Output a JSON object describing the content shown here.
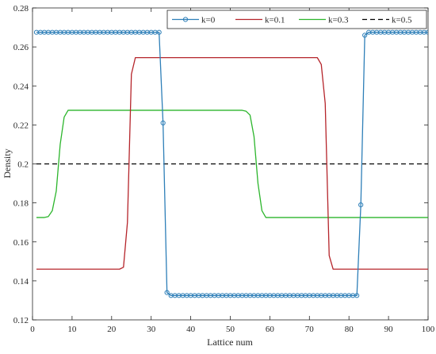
{
  "chart_data": {
    "type": "line",
    "title": "",
    "xlabel": "Lattice num",
    "ylabel": "Density",
    "xlim": [
      0,
      100
    ],
    "ylim": [
      0.12,
      0.28
    ],
    "xticks": [
      0,
      10,
      20,
      30,
      40,
      50,
      60,
      70,
      80,
      90,
      100
    ],
    "yticks": [
      0.12,
      0.14,
      0.16,
      0.18,
      0.2,
      0.22,
      0.24,
      0.26,
      0.28
    ],
    "ytick_labels": [
      "0.12",
      "0.14",
      "0.16",
      "0.18",
      "0.2",
      "0.22",
      "0.24",
      "0.26",
      "0.28"
    ],
    "grid": false,
    "legend_position": "top-right",
    "series": [
      {
        "name": "k=0",
        "color": "#2e7fb8",
        "line_style": "solid",
        "marker": "circle",
        "x": [
          1,
          2,
          3,
          4,
          5,
          6,
          7,
          8,
          9,
          10,
          11,
          12,
          13,
          14,
          15,
          16,
          17,
          18,
          19,
          20,
          21,
          22,
          23,
          24,
          25,
          26,
          27,
          28,
          29,
          30,
          31,
          32,
          33,
          34,
          35,
          36,
          37,
          38,
          39,
          40,
          41,
          42,
          43,
          44,
          45,
          46,
          47,
          48,
          49,
          50,
          51,
          52,
          53,
          54,
          55,
          56,
          57,
          58,
          59,
          60,
          61,
          62,
          63,
          64,
          65,
          66,
          67,
          68,
          69,
          70,
          71,
          72,
          73,
          74,
          75,
          76,
          77,
          78,
          79,
          80,
          81,
          82,
          83,
          84,
          85,
          86,
          87,
          88,
          89,
          90,
          91,
          92,
          93,
          94,
          95,
          96,
          97,
          98,
          99,
          100
        ],
        "y": [
          0.2675,
          0.2675,
          0.2675,
          0.2675,
          0.2675,
          0.2675,
          0.2675,
          0.2675,
          0.2675,
          0.2675,
          0.2675,
          0.2675,
          0.2675,
          0.2675,
          0.2675,
          0.2675,
          0.2675,
          0.2675,
          0.2675,
          0.2675,
          0.2675,
          0.2675,
          0.2675,
          0.2675,
          0.2675,
          0.2675,
          0.2675,
          0.2675,
          0.2675,
          0.2675,
          0.2675,
          0.2675,
          0.221,
          0.134,
          0.1325,
          0.1325,
          0.1325,
          0.1325,
          0.1325,
          0.1325,
          0.1325,
          0.1325,
          0.1325,
          0.1325,
          0.1325,
          0.1325,
          0.1325,
          0.1325,
          0.1325,
          0.1325,
          0.1325,
          0.1325,
          0.1325,
          0.1325,
          0.1325,
          0.1325,
          0.1325,
          0.1325,
          0.1325,
          0.1325,
          0.1325,
          0.1325,
          0.1325,
          0.1325,
          0.1325,
          0.1325,
          0.1325,
          0.1325,
          0.1325,
          0.1325,
          0.1325,
          0.1325,
          0.1325,
          0.1325,
          0.1325,
          0.1325,
          0.1325,
          0.1325,
          0.1325,
          0.1325,
          0.1325,
          0.1325,
          0.179,
          0.266,
          0.2675,
          0.2675,
          0.2675,
          0.2675,
          0.2675,
          0.2675,
          0.2675,
          0.2675,
          0.2675,
          0.2675,
          0.2675,
          0.2675,
          0.2675,
          0.2675,
          0.2675,
          0.2675
        ]
      },
      {
        "name": "k=0.1",
        "color": "#b5242a",
        "line_style": "solid",
        "marker": "none",
        "x": [
          1,
          22,
          23,
          24,
          25,
          26,
          27,
          72,
          73,
          74,
          75,
          76,
          77,
          100
        ],
        "y": [
          0.146,
          0.146,
          0.147,
          0.17,
          0.246,
          0.2545,
          0.2545,
          0.2545,
          0.251,
          0.231,
          0.153,
          0.146,
          0.146,
          0.146
        ]
      },
      {
        "name": "k=0.3",
        "color": "#2bb52b",
        "line_style": "solid",
        "marker": "none",
        "x": [
          1,
          3,
          4,
          5,
          6,
          7,
          8,
          9,
          10,
          53,
          54,
          55,
          56,
          57,
          58,
          59,
          60,
          100
        ],
        "y": [
          0.1725,
          0.1725,
          0.173,
          0.176,
          0.186,
          0.21,
          0.224,
          0.2275,
          0.2275,
          0.2275,
          0.227,
          0.225,
          0.214,
          0.19,
          0.176,
          0.1725,
          0.1725,
          0.1725
        ]
      },
      {
        "name": "k=0.5",
        "color": "#000000",
        "line_style": "dashed",
        "marker": "none",
        "x": [
          1,
          100
        ],
        "y": [
          0.2,
          0.2
        ]
      }
    ]
  }
}
